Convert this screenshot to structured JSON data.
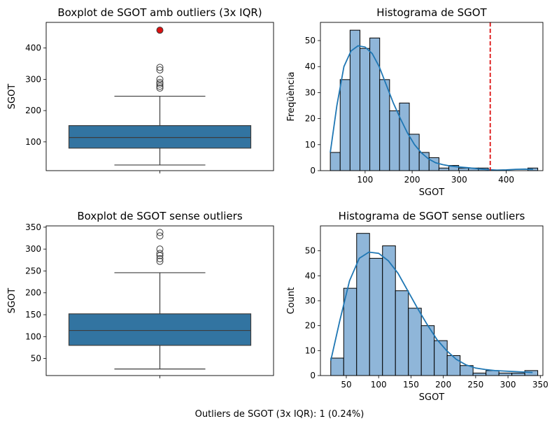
{
  "chart_data": [
    {
      "type": "boxplot",
      "title": "Boxplot de SGOT amb outliers (3x IQR)",
      "xlabel": "",
      "ylabel": "SGOT",
      "ylim": [
        8,
        482
      ],
      "yticks": [
        100,
        200,
        300,
        400
      ],
      "box": {
        "whisker_low": 26,
        "q1": 80,
        "median": 114,
        "q3": 152,
        "whisker_high": 246
      },
      "fliers": [
        272,
        278,
        285,
        290,
        300,
        330,
        338
      ],
      "highlight_outliers": [
        457
      ],
      "box_color": "#3274a1",
      "highlight_color": "#dd1111"
    },
    {
      "type": "histogram",
      "title": "Histograma de SGOT",
      "xlabel": "SGOT",
      "ylabel": "Freqüència",
      "xlim": [
        5,
        478
      ],
      "ylim": [
        0,
        57
      ],
      "xticks": [
        100,
        200,
        300,
        400
      ],
      "yticks": [
        0,
        10,
        20,
        30,
        40,
        50
      ],
      "bin_edges": [
        26,
        47,
        68,
        89,
        110,
        131,
        152,
        173,
        194,
        215,
        236,
        257,
        278,
        299,
        320,
        341,
        362,
        383,
        404,
        425,
        446,
        467
      ],
      "counts": [
        7,
        35,
        54,
        47,
        51,
        35,
        23,
        26,
        14,
        7,
        5,
        1,
        2,
        1,
        1,
        1,
        0,
        0,
        0,
        0,
        1
      ],
      "kde": [
        [
          26,
          7
        ],
        [
          40,
          25
        ],
        [
          55,
          40
        ],
        [
          70,
          46
        ],
        [
          85,
          48
        ],
        [
          100,
          47.5
        ],
        [
          115,
          45
        ],
        [
          130,
          40
        ],
        [
          145,
          33
        ],
        [
          160,
          26
        ],
        [
          175,
          20
        ],
        [
          190,
          14.5
        ],
        [
          205,
          10
        ],
        [
          220,
          6.8
        ],
        [
          235,
          4.5
        ],
        [
          250,
          3
        ],
        [
          265,
          2.3
        ],
        [
          280,
          1.8
        ],
        [
          300,
          1.4
        ],
        [
          320,
          1.1
        ],
        [
          340,
          0.7
        ],
        [
          360,
          0.4
        ],
        [
          380,
          0.2
        ],
        [
          400,
          0.3
        ],
        [
          420,
          0.5
        ],
        [
          440,
          0.6
        ],
        [
          457,
          0.5
        ]
      ],
      "threshold_line": 366,
      "bar_color": "#8fb6d9",
      "line_color": "#1f77b4",
      "threshold_color": "#dd1111"
    },
    {
      "type": "boxplot",
      "title": "Boxplot de SGOT sense outliers",
      "xlabel": "",
      "ylabel": "SGOT",
      "ylim": [
        11,
        353
      ],
      "yticks": [
        50,
        100,
        150,
        200,
        250,
        300,
        350
      ],
      "box": {
        "whisker_low": 26,
        "q1": 80,
        "median": 114,
        "q3": 152,
        "whisker_high": 246
      },
      "fliers": [
        272,
        278,
        285,
        290,
        300,
        330,
        338
      ],
      "box_color": "#3274a1"
    },
    {
      "type": "histogram",
      "title": "Histograma de SGOT sense outliers",
      "xlabel": "SGOT",
      "ylabel": "Count",
      "xlim": [
        10,
        354
      ],
      "ylim": [
        0,
        60
      ],
      "xticks": [
        50,
        100,
        150,
        200,
        250,
        300,
        350
      ],
      "yticks": [
        0,
        10,
        20,
        30,
        40,
        50
      ],
      "bin_edges": [
        26,
        46,
        66,
        86,
        106,
        126,
        146,
        166,
        186,
        206,
        226,
        246,
        266,
        286,
        306,
        326,
        346
      ],
      "counts": [
        7,
        35,
        57,
        47,
        52,
        34,
        27,
        20,
        14,
        8,
        4,
        1,
        2,
        1,
        1,
        2
      ],
      "kde": [
        [
          26,
          6
        ],
        [
          40,
          22
        ],
        [
          55,
          38
        ],
        [
          70,
          47
        ],
        [
          85,
          49.5
        ],
        [
          100,
          49
        ],
        [
          115,
          46
        ],
        [
          130,
          41
        ],
        [
          145,
          34
        ],
        [
          160,
          27
        ],
        [
          175,
          20.5
        ],
        [
          190,
          14.5
        ],
        [
          205,
          10
        ],
        [
          220,
          6.5
        ],
        [
          235,
          4.3
        ],
        [
          250,
          3
        ],
        [
          265,
          2.4
        ],
        [
          280,
          2
        ],
        [
          295,
          1.8
        ],
        [
          310,
          1.6
        ],
        [
          325,
          1.4
        ],
        [
          338,
          1.2
        ]
      ],
      "bar_color": "#8fb6d9",
      "line_color": "#1f77b4"
    }
  ],
  "caption": "Outliers de SGOT (3x IQR): 1 (0.24%)"
}
